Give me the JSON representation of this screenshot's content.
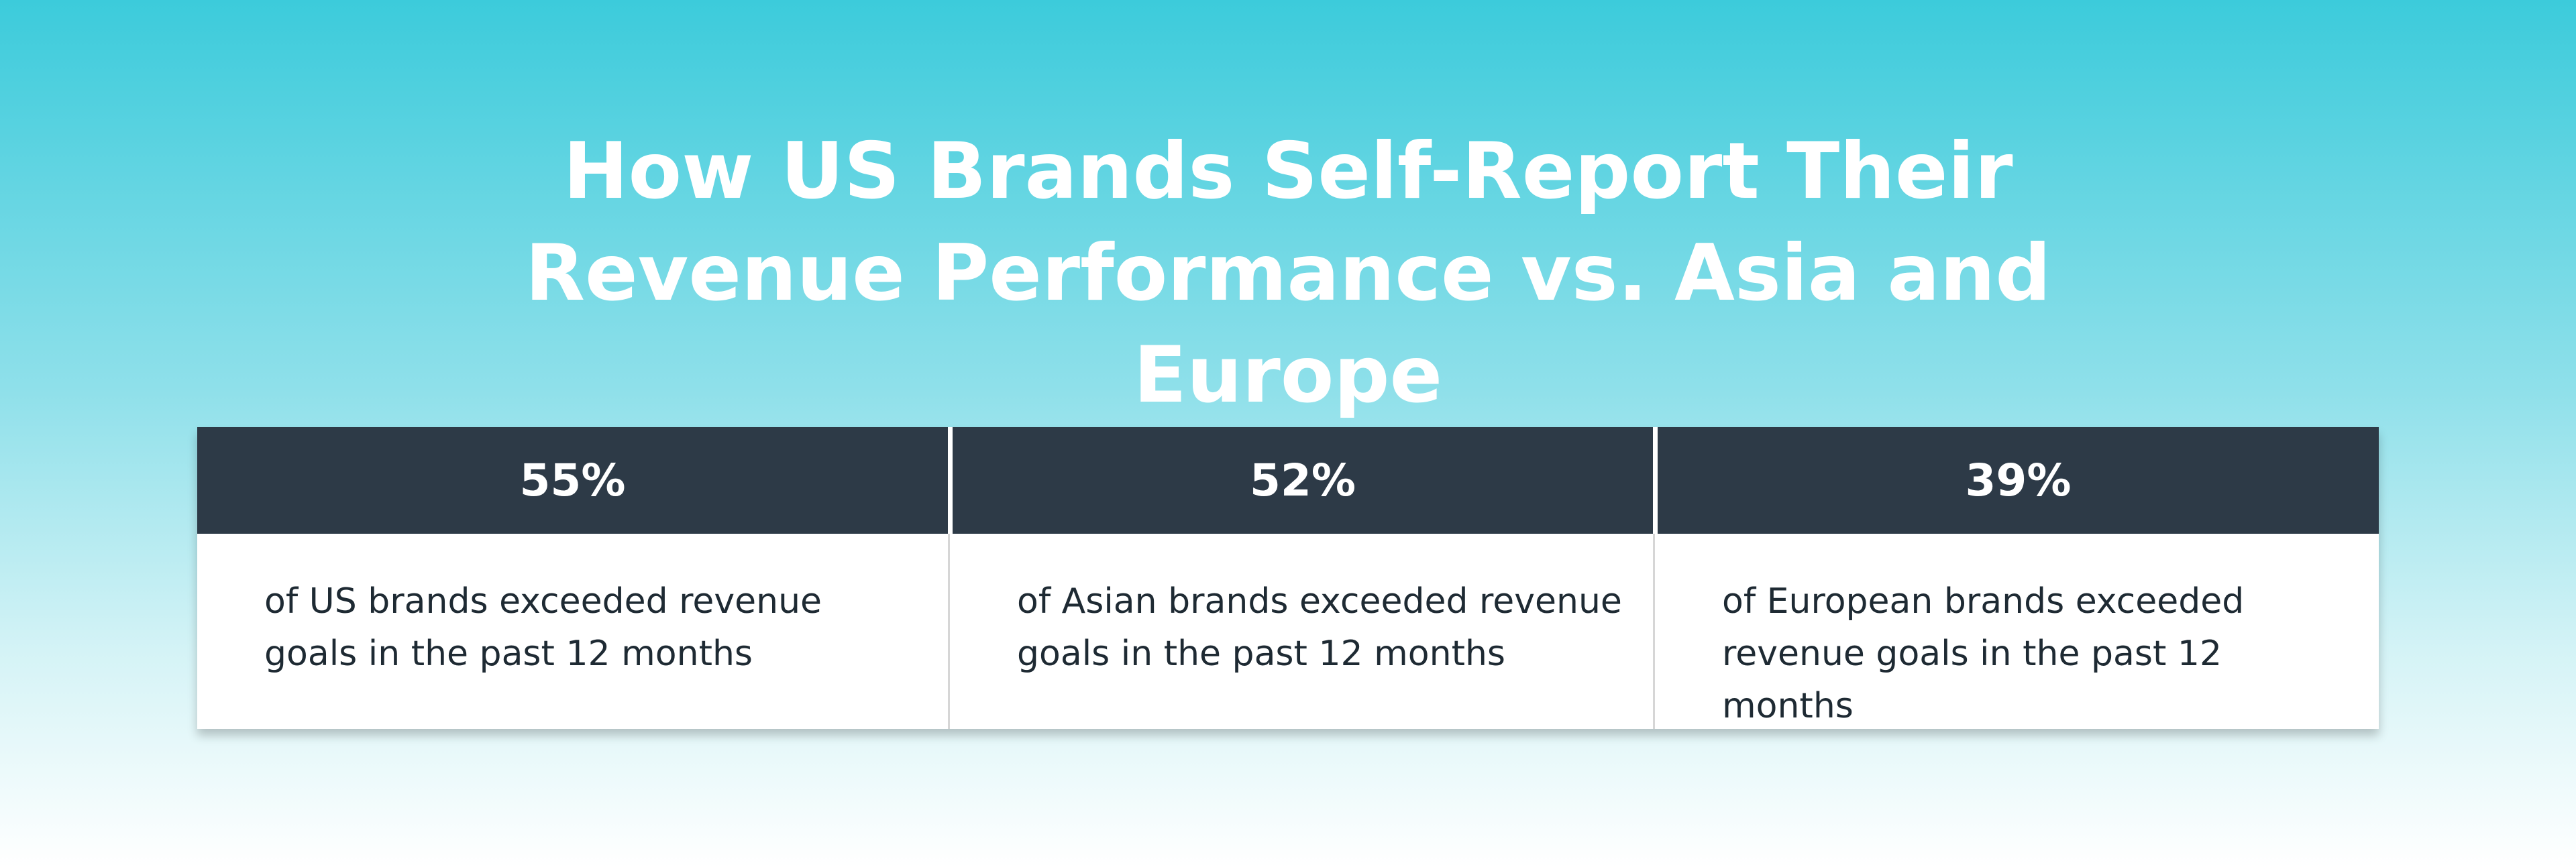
{
  "title": "How US Brands Self-Report Their Revenue Performance vs. Asia and Europe",
  "cards": [
    {
      "stat": "55%",
      "text": "of US brands exceeded revenue goals in the past 12 months"
    },
    {
      "stat": "52%",
      "text": "of Asian brands exceeded revenue goals in the past 12 months"
    },
    {
      "stat": "39%",
      "text": "of European brands exceeded revenue goals in the past 12 months"
    }
  ]
}
